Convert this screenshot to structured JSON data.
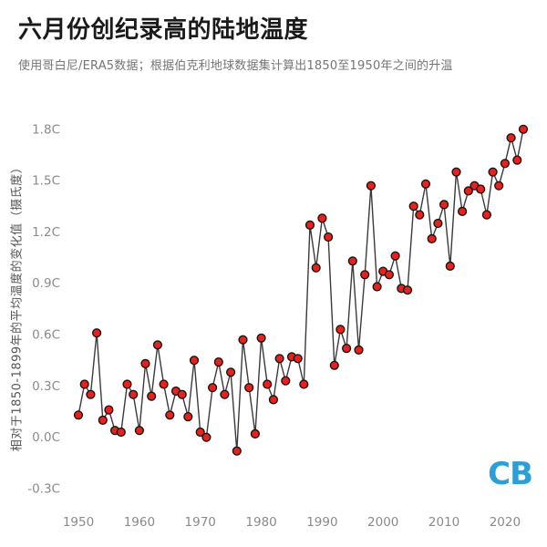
{
  "header": {
    "title": "六月份创纪录高的陆地温度",
    "subtitle": "使用哥白尼/ERA5数据；根据伯克利地球数据集计算出1850至1950年之间的升温"
  },
  "branding": {
    "logo_text": "CB",
    "logo_color": "#2c9fd4"
  },
  "chart_data": {
    "type": "line",
    "title": "六月份创纪录高的陆地温度",
    "xlabel": "",
    "ylabel": "相对于1850-1899年的平均温度的变化值（摄氏度）",
    "grid": false,
    "legend": "none",
    "marker_color": "#e8211d",
    "marker_edge": "#151515",
    "line_color": "#3a3a3a",
    "xlim": [
      1948.8,
      2024.2
    ],
    "ylim": [
      -0.38,
      1.9
    ],
    "y_ticks": [
      -0.3,
      0.0,
      0.3,
      0.6,
      0.9,
      1.2,
      1.5,
      1.8
    ],
    "y_tick_labels": [
      "-0.3C",
      "0.0C",
      "0.3C",
      "0.6C",
      "0.9C",
      "1.2C",
      "1.5C",
      "1.8C"
    ],
    "x_ticks": [
      1950,
      1960,
      1970,
      1980,
      1990,
      2000,
      2010,
      2020
    ],
    "x_tick_labels": [
      "1950",
      "1960",
      "1970",
      "1980",
      "1990",
      "2000",
      "2010",
      "2020"
    ],
    "years": [
      1950,
      1951,
      1952,
      1953,
      1954,
      1955,
      1956,
      1957,
      1958,
      1959,
      1960,
      1961,
      1962,
      1963,
      1964,
      1965,
      1966,
      1967,
      1968,
      1969,
      1970,
      1971,
      1972,
      1973,
      1974,
      1975,
      1976,
      1977,
      1978,
      1979,
      1980,
      1981,
      1982,
      1983,
      1984,
      1985,
      1986,
      1987,
      1988,
      1989,
      1990,
      1991,
      1992,
      1993,
      1994,
      1995,
      1996,
      1997,
      1998,
      1999,
      2000,
      2001,
      2002,
      2003,
      2004,
      2005,
      2006,
      2007,
      2008,
      2009,
      2010,
      2011,
      2012,
      2013,
      2014,
      2015,
      2016,
      2017,
      2018,
      2019,
      2020,
      2021,
      2022,
      2023
    ],
    "values": [
      0.13,
      0.31,
      0.25,
      0.61,
      0.1,
      0.16,
      0.04,
      0.03,
      0.31,
      0.25,
      0.04,
      0.43,
      0.24,
      0.54,
      0.31,
      0.13,
      0.27,
      0.25,
      0.12,
      0.45,
      0.03,
      0.0,
      0.29,
      0.44,
      0.25,
      0.38,
      -0.08,
      0.57,
      0.29,
      0.02,
      0.58,
      0.31,
      0.22,
      0.46,
      0.33,
      0.47,
      0.46,
      0.31,
      1.24,
      0.99,
      1.28,
      1.17,
      0.42,
      0.63,
      0.52,
      1.03,
      0.51,
      0.95,
      1.47,
      0.88,
      0.97,
      0.95,
      1.06,
      0.87,
      0.86,
      1.35,
      1.3,
      1.48,
      1.16,
      1.25,
      1.36,
      1.0,
      1.55,
      1.32,
      1.44,
      1.47,
      1.45,
      1.3,
      1.55,
      1.47,
      1.6,
      1.75,
      1.62,
      1.8
    ]
  }
}
